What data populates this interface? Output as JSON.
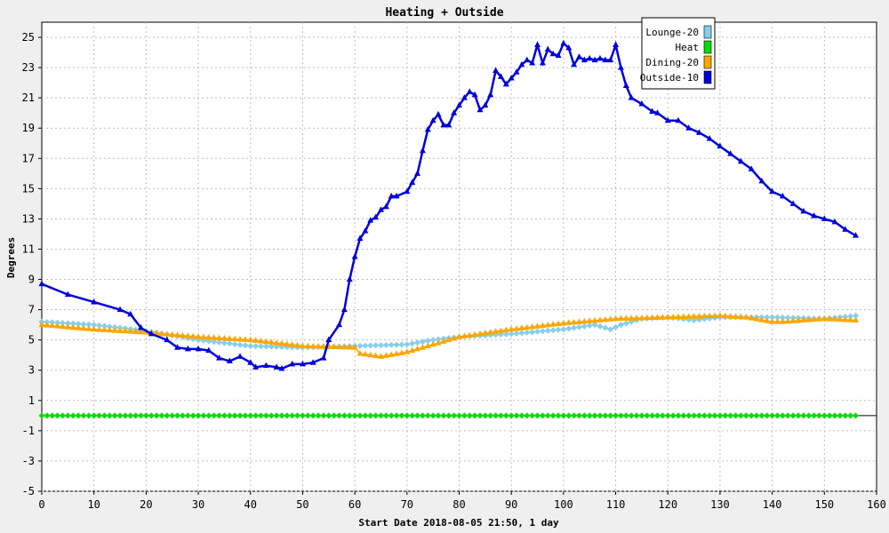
{
  "chart_data": {
    "type": "line",
    "title": "Heating + Outside",
    "xlabel": "Start Date 2018-08-05 21:50, 1 day",
    "ylabel": "Degrees",
    "xlim": [
      0,
      160
    ],
    "ylim": [
      -5,
      26
    ],
    "xticks": [
      0,
      10,
      20,
      30,
      40,
      50,
      60,
      70,
      80,
      90,
      100,
      110,
      120,
      130,
      140,
      150,
      160
    ],
    "yticks": [
      -5,
      -3,
      -1,
      1,
      3,
      5,
      7,
      9,
      11,
      13,
      15,
      17,
      19,
      21,
      23,
      25
    ],
    "grid": true,
    "legend_position": "top-right",
    "series": [
      {
        "name": "Lounge-20",
        "color": "#87ceeb",
        "marker": "diamond",
        "points": [
          [
            0,
            6.2
          ],
          [
            10,
            6.0
          ],
          [
            20,
            5.6
          ],
          [
            30,
            5.0
          ],
          [
            40,
            4.6
          ],
          [
            50,
            4.5
          ],
          [
            60,
            4.6
          ],
          [
            70,
            4.7
          ],
          [
            75,
            5.0
          ],
          [
            80,
            5.2
          ],
          [
            90,
            5.4
          ],
          [
            100,
            5.7
          ],
          [
            106,
            6.0
          ],
          [
            109,
            5.7
          ],
          [
            111,
            6.0
          ],
          [
            115,
            6.4
          ],
          [
            120,
            6.5
          ],
          [
            125,
            6.3
          ],
          [
            130,
            6.5
          ],
          [
            140,
            6.5
          ],
          [
            150,
            6.4
          ],
          [
            156,
            6.6
          ]
        ]
      },
      {
        "name": "Heat",
        "color": "#00dd00",
        "marker": "diamond",
        "points": [
          [
            0,
            0
          ],
          [
            156,
            0
          ]
        ]
      },
      {
        "name": "Dining-20",
        "color": "#ffa500",
        "marker": "triangle",
        "points": [
          [
            0,
            6.0
          ],
          [
            10,
            5.7
          ],
          [
            20,
            5.5
          ],
          [
            30,
            5.2
          ],
          [
            40,
            5.0
          ],
          [
            50,
            4.6
          ],
          [
            60,
            4.5
          ],
          [
            61,
            4.1
          ],
          [
            65,
            3.9
          ],
          [
            70,
            4.2
          ],
          [
            75,
            4.7
          ],
          [
            80,
            5.2
          ],
          [
            90,
            5.7
          ],
          [
            100,
            6.1
          ],
          [
            110,
            6.4
          ],
          [
            120,
            6.5
          ],
          [
            130,
            6.6
          ],
          [
            135,
            6.5
          ],
          [
            140,
            6.2
          ],
          [
            142,
            6.2
          ],
          [
            150,
            6.4
          ],
          [
            156,
            6.3
          ]
        ]
      },
      {
        "name": "Outside-10",
        "color": "#0000dd",
        "marker": "triangle",
        "points": [
          [
            0,
            8.7
          ],
          [
            5,
            8.0
          ],
          [
            10,
            7.5
          ],
          [
            15,
            7.0
          ],
          [
            17,
            6.7
          ],
          [
            19,
            5.8
          ],
          [
            21,
            5.4
          ],
          [
            24,
            5.0
          ],
          [
            26,
            4.5
          ],
          [
            28,
            4.4
          ],
          [
            30,
            4.4
          ],
          [
            32,
            4.3
          ],
          [
            34,
            3.8
          ],
          [
            36,
            3.6
          ],
          [
            38,
            3.9
          ],
          [
            40,
            3.5
          ],
          [
            41,
            3.2
          ],
          [
            43,
            3.3
          ],
          [
            45,
            3.2
          ],
          [
            46,
            3.1
          ],
          [
            48,
            3.4
          ],
          [
            50,
            3.4
          ],
          [
            52,
            3.5
          ],
          [
            54,
            3.8
          ],
          [
            55,
            5.0
          ],
          [
            57,
            6.0
          ],
          [
            58,
            7.0
          ],
          [
            59,
            9.0
          ],
          [
            60,
            10.5
          ],
          [
            61,
            11.7
          ],
          [
            62,
            12.2
          ],
          [
            63,
            12.9
          ],
          [
            64,
            13.1
          ],
          [
            65,
            13.6
          ],
          [
            66,
            13.8
          ],
          [
            67,
            14.5
          ],
          [
            68,
            14.5
          ],
          [
            70,
            14.8
          ],
          [
            71,
            15.4
          ],
          [
            72,
            16.0
          ],
          [
            73,
            17.5
          ],
          [
            74,
            18.9
          ],
          [
            75,
            19.5
          ],
          [
            76,
            19.9
          ],
          [
            77,
            19.2
          ],
          [
            78,
            19.2
          ],
          [
            79,
            20.0
          ],
          [
            80,
            20.5
          ],
          [
            81,
            21.0
          ],
          [
            82,
            21.4
          ],
          [
            83,
            21.2
          ],
          [
            84,
            20.2
          ],
          [
            85,
            20.5
          ],
          [
            86,
            21.2
          ],
          [
            87,
            22.8
          ],
          [
            88,
            22.4
          ],
          [
            89,
            21.9
          ],
          [
            90,
            22.3
          ],
          [
            91,
            22.7
          ],
          [
            92,
            23.2
          ],
          [
            93,
            23.5
          ],
          [
            94,
            23.3
          ],
          [
            95,
            24.5
          ],
          [
            96,
            23.3
          ],
          [
            97,
            24.2
          ],
          [
            98,
            23.9
          ],
          [
            99,
            23.8
          ],
          [
            100,
            24.6
          ],
          [
            101,
            24.3
          ],
          [
            102,
            23.2
          ],
          [
            103,
            23.7
          ],
          [
            104,
            23.5
          ],
          [
            105,
            23.6
          ],
          [
            106,
            23.5
          ],
          [
            107,
            23.6
          ],
          [
            108,
            23.5
          ],
          [
            109,
            23.5
          ],
          [
            110,
            24.5
          ],
          [
            111,
            23.0
          ],
          [
            112,
            21.8
          ],
          [
            113,
            21.0
          ],
          [
            115,
            20.6
          ],
          [
            117,
            20.1
          ],
          [
            118,
            20.0
          ],
          [
            120,
            19.5
          ],
          [
            122,
            19.5
          ],
          [
            124,
            19.0
          ],
          [
            126,
            18.7
          ],
          [
            128,
            18.3
          ],
          [
            130,
            17.8
          ],
          [
            132,
            17.3
          ],
          [
            134,
            16.8
          ],
          [
            136,
            16.3
          ],
          [
            138,
            15.5
          ],
          [
            140,
            14.8
          ],
          [
            142,
            14.5
          ],
          [
            144,
            14.0
          ],
          [
            146,
            13.5
          ],
          [
            148,
            13.2
          ],
          [
            150,
            13.0
          ],
          [
            152,
            12.8
          ],
          [
            154,
            12.3
          ],
          [
            156,
            11.9
          ]
        ]
      }
    ]
  }
}
